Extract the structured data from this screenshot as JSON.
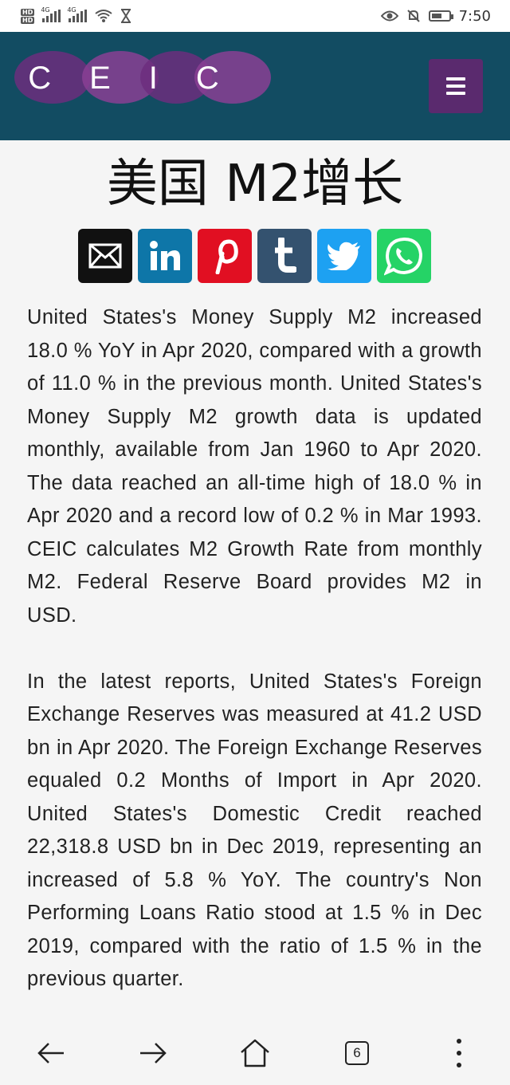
{
  "status_bar": {
    "hd1": "HD",
    "hd2": "HD",
    "net1": "4G",
    "net2": "4G",
    "time": "7:50",
    "battery_level": 0.4,
    "icons": [
      "signal-icon",
      "wifi-icon",
      "hourglass-icon",
      "eye-icon",
      "mute-icon",
      "battery-icon"
    ]
  },
  "header": {
    "logo_text": "CEIC",
    "colors": {
      "background": "#124c62",
      "menu": "#5a2a6e",
      "logo": "#7b3f8c"
    }
  },
  "page": {
    "title": "美国 M2增长"
  },
  "share": {
    "items": [
      {
        "name": "email",
        "icon": "email-icon",
        "color": "#111111"
      },
      {
        "name": "linkedin",
        "icon": "linkedin-icon",
        "color": "#0e76a8"
      },
      {
        "name": "pinterest",
        "icon": "pinterest-icon",
        "color": "#e10f22"
      },
      {
        "name": "tumblr",
        "icon": "tumblr-icon",
        "color": "#34526f"
      },
      {
        "name": "twitter",
        "icon": "twitter-icon",
        "color": "#1da1f2"
      },
      {
        "name": "whatsapp",
        "icon": "whatsapp-icon",
        "color": "#25d366"
      }
    ]
  },
  "content": {
    "paragraphs": [
      "United States's Money Supply M2 increased 18.0 % YoY in Apr 2020, compared with a growth of 11.0 % in the previous month. United States's Money Supply M2 growth data is updated monthly, available from Jan 1960 to Apr 2020. The data reached an all-time high of 18.0 % in Apr 2020 and a record low of 0.2 % in Mar 1993. CEIC calculates M2 Growth Rate from monthly M2. Federal Reserve Board provides M2 in USD.",
      "In the latest reports, United States's Foreign Exchange Reserves was measured at 41.2 USD bn in Apr 2020. The Foreign Exchange Reserves equaled 0.2 Months of Import in Apr 2020. United States's Domestic Credit reached 22,318.8 USD bn in Dec 2019, representing an increased of 5.8 % YoY. The country's Non Performing Loans Ratio stood at 1.5 % in Dec 2019, compared with the ratio of 1.5 % in the previous quarter."
    ]
  },
  "bottom_nav": {
    "tab_count": "6",
    "icons": [
      "back-arrow-icon",
      "forward-arrow-icon",
      "home-icon",
      "tabs-icon",
      "more-vertical-icon"
    ]
  }
}
